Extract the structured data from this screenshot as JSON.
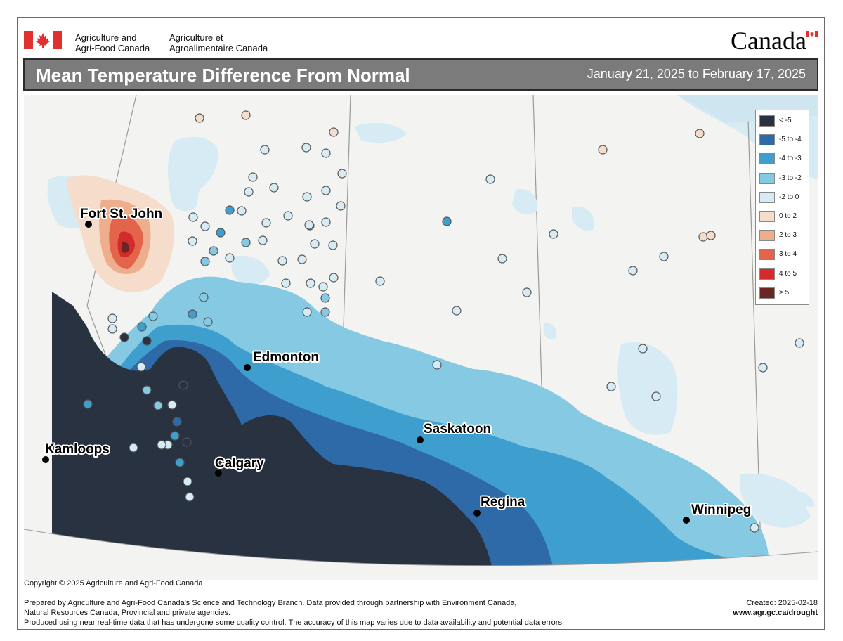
{
  "header": {
    "agency_en_line1": "Agriculture and",
    "agency_en_line2": "Agri-Food Canada",
    "agency_fr_line1": "Agriculture et",
    "agency_fr_line2": "Agroalimentaire Canada",
    "wordmark": "Canada"
  },
  "title": "Mean Temperature Difference From Normal",
  "date_range": "January 21, 2025 to February 17, 2025",
  "legend": [
    {
      "label": "< -5",
      "color": "#283241"
    },
    {
      "label": "-5 to -4",
      "color": "#2f6aa8"
    },
    {
      "label": "-4 to -3",
      "color": "#3e9fce"
    },
    {
      "label": "-3 to -2",
      "color": "#86c9e2"
    },
    {
      "label": "-2 to 0",
      "color": "#d6ebf4"
    },
    {
      "label": "0 to 2",
      "color": "#f6dcca"
    },
    {
      "label": "2 to 3",
      "color": "#eeae8d"
    },
    {
      "label": "3 to 4",
      "color": "#e2644a"
    },
    {
      "label": "4 to 5",
      "color": "#d42a2a"
    },
    {
      "label": "> 5",
      "color": "#6b2525"
    }
  ],
  "cities": {
    "fort_st_john": "Fort St. John",
    "edmonton": "Edmonton",
    "kamloops": "Kamloops",
    "saskatoon": "Saskatoon",
    "calgary": "Calgary",
    "regina": "Regina",
    "winnipeg": "Winnipeg"
  },
  "copyright": "Copyright © 2025 Agriculture and Agri-Food Canada",
  "footer": {
    "line1": "Prepared by Agriculture and Agri-Food Canada's Science and Technology Branch. Data provided through partnership with Environment Canada,",
    "line2": "Natural Resources Canada, Provincial and private agencies.",
    "line3": "Produced using near real-time data that has undergone some quality control. The accuracy of this map varies due to data availability and potential data errors.",
    "created": "Created: 2025-02-18",
    "url": "www.agr.gc.ca/drought"
  }
}
